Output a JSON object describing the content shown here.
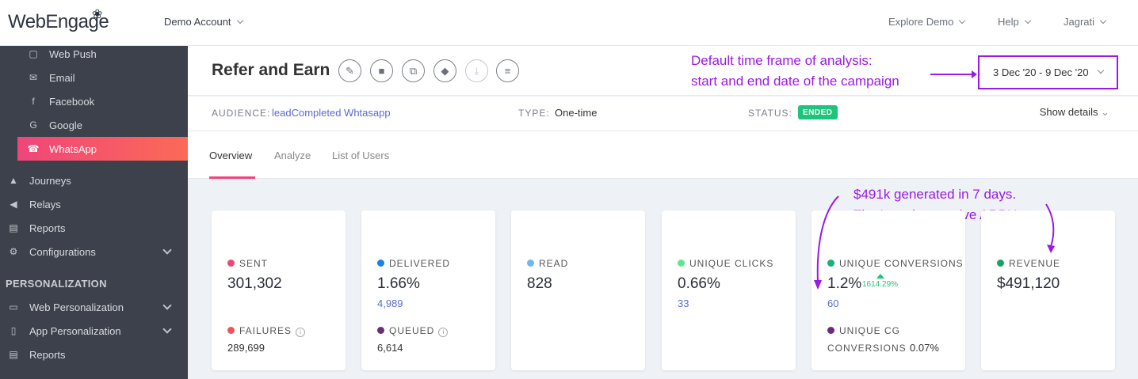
{
  "top": {
    "logo": "WebEngage",
    "account": "Demo Account",
    "nav": [
      "Explore Demo",
      "Help",
      "Jagrati"
    ]
  },
  "sidebar": {
    "channels": [
      "Web Push",
      "Email",
      "Facebook",
      "Google",
      "WhatsApp"
    ],
    "main": [
      "Journeys",
      "Relays",
      "Reports",
      "Configurations"
    ],
    "section": "PERSONALIZATION",
    "personalization": [
      "Web Personalization",
      "App Personalization",
      "Reports"
    ]
  },
  "campaign": {
    "title": "Refer and Earn",
    "date_range": "3 Dec '20 - 9 Dec '20",
    "audience_label": "AUDIENCE:",
    "audience_value": "leadCompleted Whtasapp",
    "type_label": "TYPE:",
    "type_value": "One-time",
    "status_label": "STATUS:",
    "status_value": "ENDED",
    "show_details": "Show details"
  },
  "tabs": [
    "Overview",
    "Analyze",
    "List of Users"
  ],
  "annotations": {
    "date_note_1": "Default time frame of analysis:",
    "date_note_2": "start and end date of the campaign",
    "arpu_note_1": "$491k generated in 7 days.",
    "arpu_note_2": "That's an impressive ARPU"
  },
  "stats": {
    "sent": {
      "label": "SENT",
      "value": "301,302",
      "color": "#f0457a"
    },
    "failures": {
      "label": "FAILURES",
      "value": "289,699",
      "color": "#ef5160"
    },
    "delivered": {
      "label": "DELIVERED",
      "value": "1.66%",
      "sub": "4,989",
      "color": "#1a82e2"
    },
    "queued": {
      "label": "QUEUED",
      "value": "6,614",
      "color": "#6b2d7a"
    },
    "read": {
      "label": "READ",
      "value": "828",
      "color": "#6fb7ef"
    },
    "unique_clicks": {
      "label": "UNIQUE CLICKS",
      "value": "0.66%",
      "sub": "33",
      "color": "#5ee78f"
    },
    "unique_conversions": {
      "label": "UNIQUE CONVERSIONS",
      "value": "1.2%",
      "sub": "60",
      "uplift": "1614.29%",
      "color": "#1ab07a"
    },
    "unique_cg": {
      "label_1": "UNIQUE CG",
      "label_2": "CONVERSIONS",
      "value": "0.07%",
      "color": "#6b2d7a"
    },
    "revenue": {
      "label": "REVENUE",
      "value": "$491,120",
      "color": "#14a36b"
    }
  }
}
